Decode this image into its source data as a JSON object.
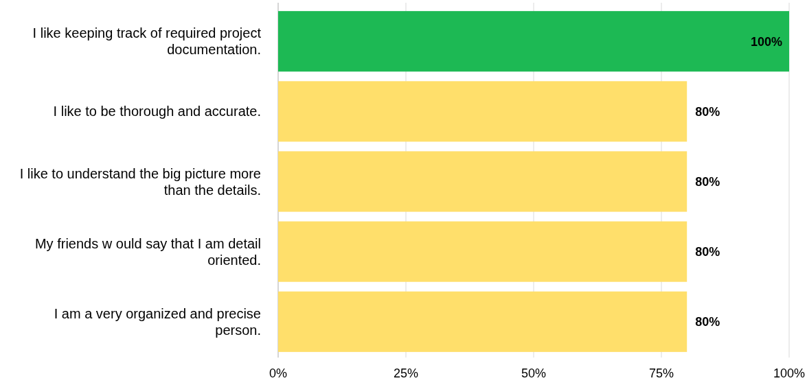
{
  "chart_data": {
    "type": "bar",
    "orientation": "horizontal",
    "categories": [
      "I like keeping track of required project documentation.",
      "I like to be thorough and accurate.",
      "I like to understand the big picture more than the details.",
      "My friends w ould say that I am detail oriented.",
      "I am a very organized and precise person."
    ],
    "values": [
      100,
      80,
      80,
      80,
      80
    ],
    "colors": [
      "#1db954",
      "#ffdf6b",
      "#ffdf6b",
      "#ffdf6b",
      "#ffdf6b"
    ],
    "xlim": [
      0,
      100
    ],
    "xticks": [
      {
        "value": 0,
        "label": "0%"
      },
      {
        "value": 25,
        "label": "25%"
      },
      {
        "value": 50,
        "label": "50%"
      },
      {
        "value": 75,
        "label": "75%"
      },
      {
        "value": 100,
        "label": "100%"
      }
    ],
    "value_labels": [
      "100%",
      "80%",
      "80%",
      "80%",
      "80%"
    ],
    "grid": "x"
  }
}
